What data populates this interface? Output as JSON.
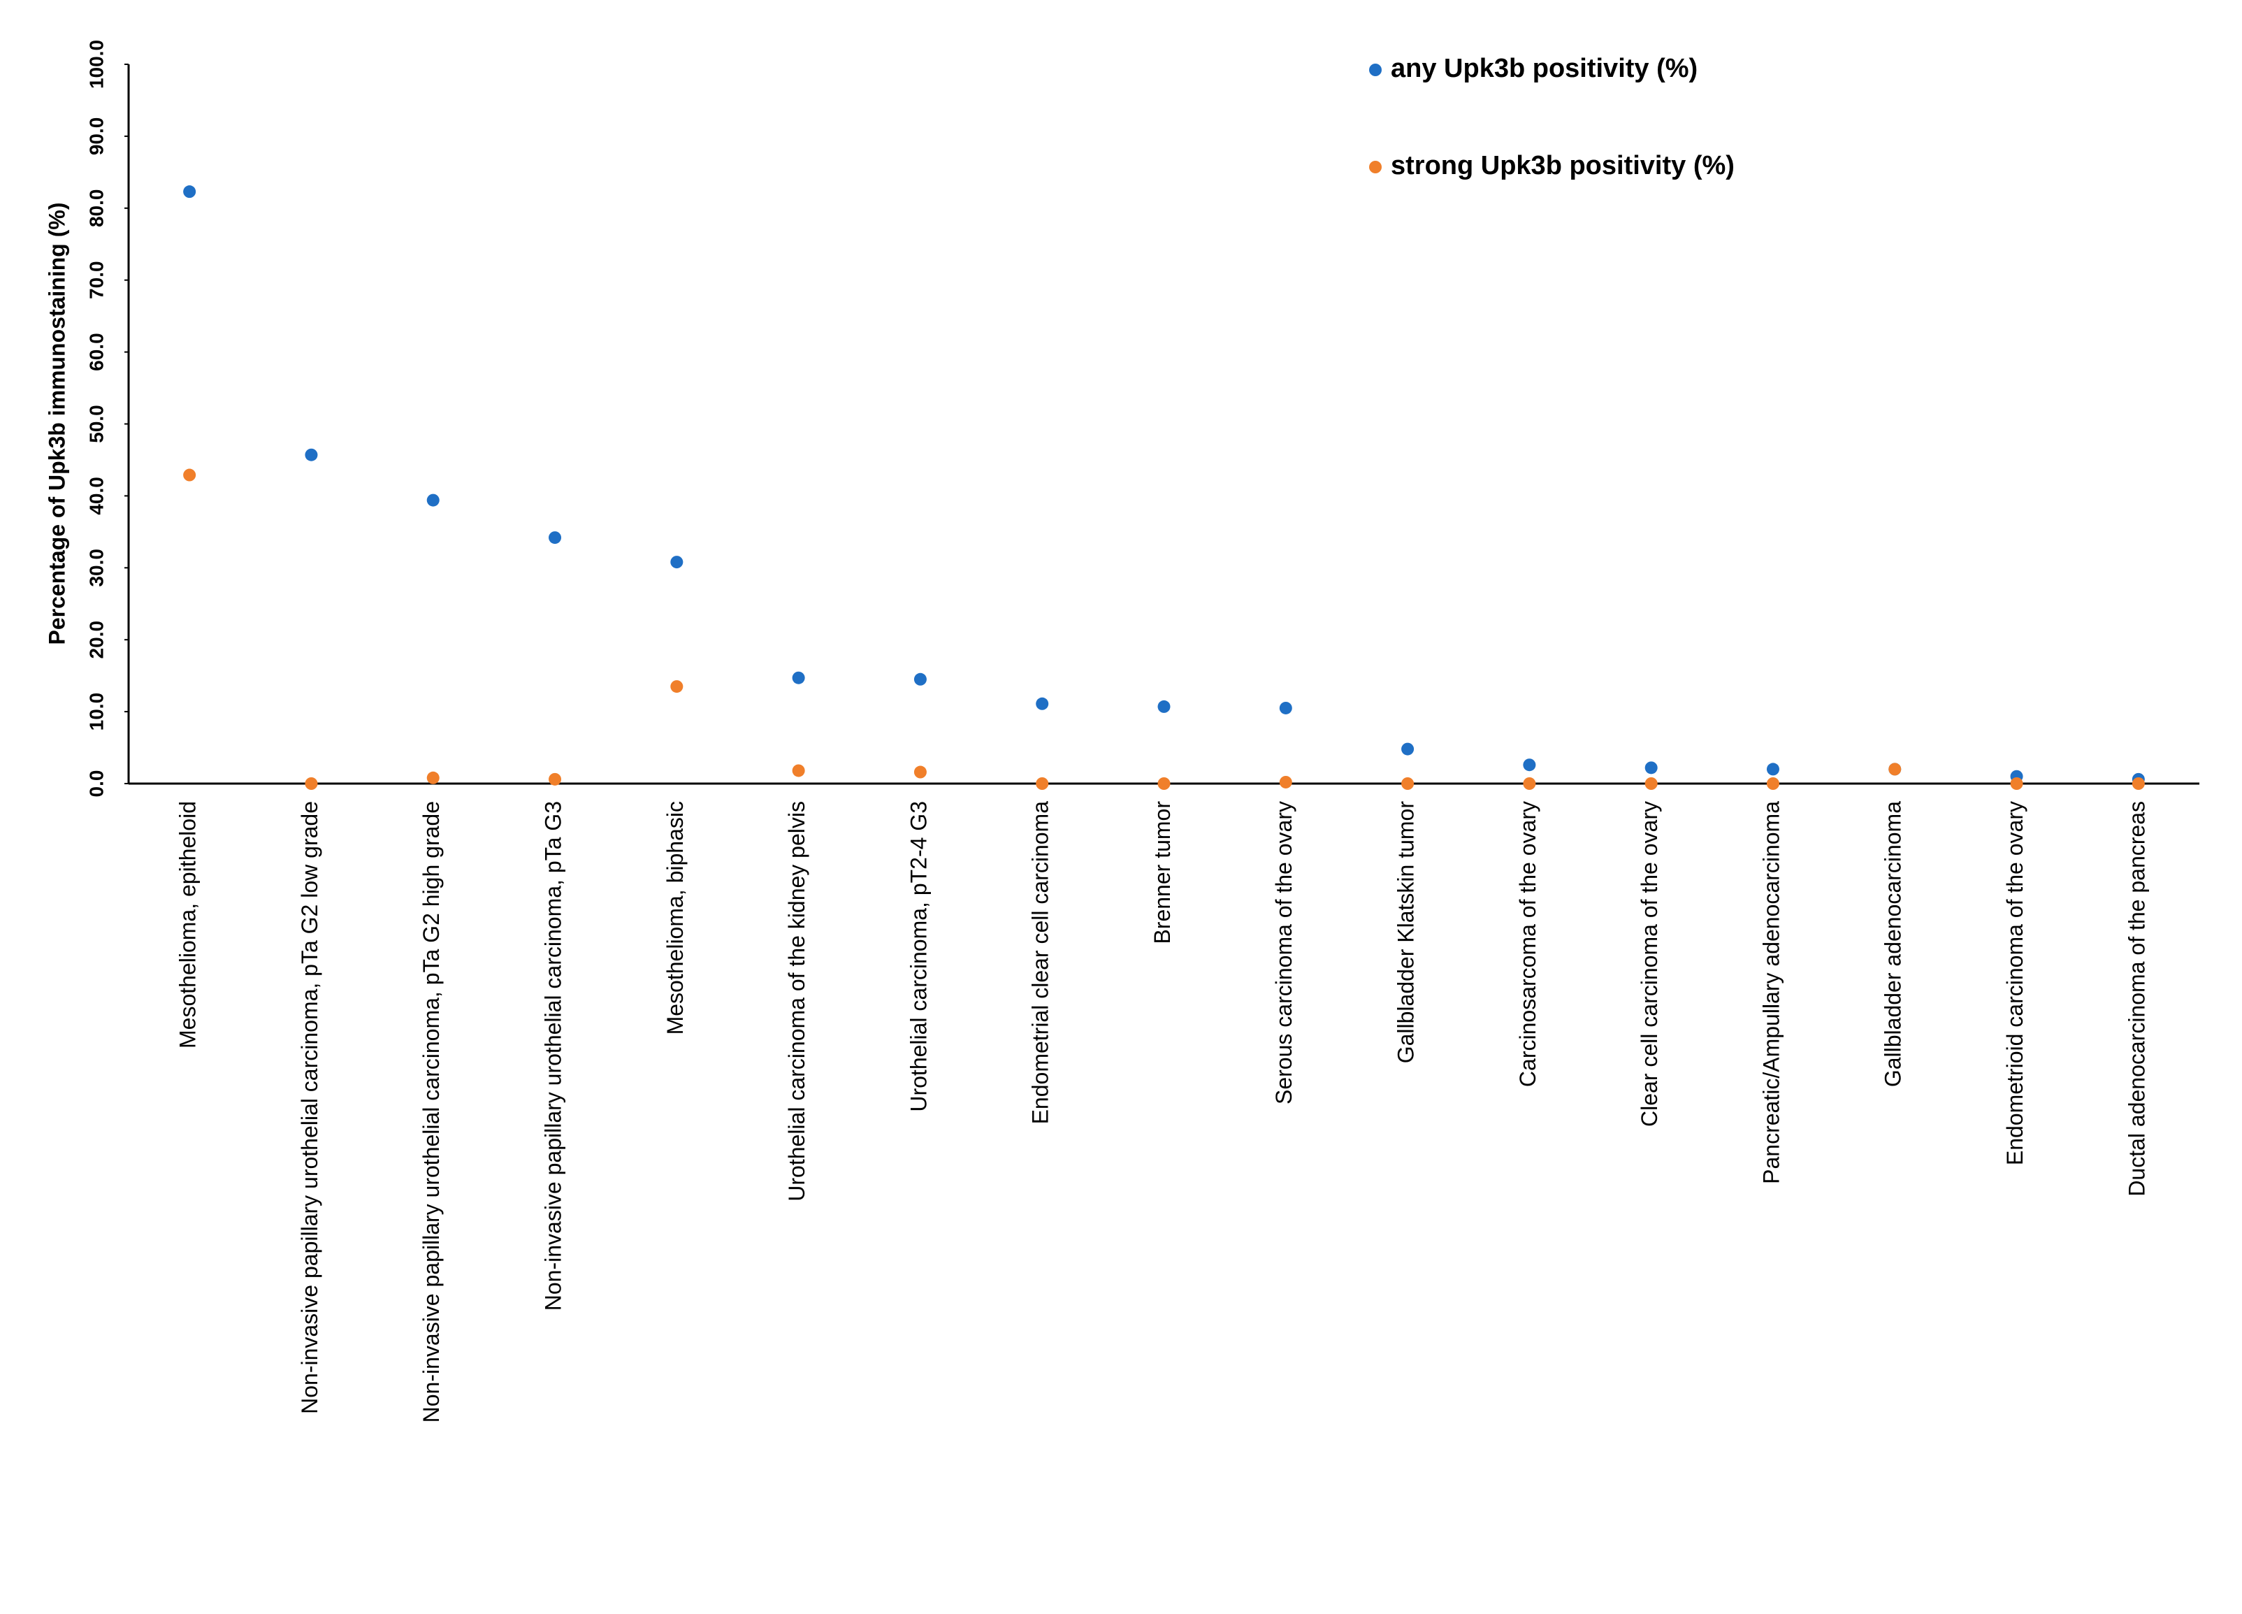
{
  "chart_data": {
    "type": "scatter",
    "y_label": "Percentage of Upk3b immunostaining (%)",
    "categories": [
      "Mesothelioma, epitheloid",
      "Non-invasive papillary urothelial carcinoma, pTa G2 low grade",
      "Non-invasive papillary urothelial carcinoma, pTa G2 high grade",
      "Non-invasive papillary urothelial carcinoma, pTa G3",
      "Mesothelioma, biphasic",
      "Urothelial carcinoma of the kidney pelvis",
      "Urothelial carcinoma, pT2-4 G3",
      "Endometrial clear cell carcinoma",
      "Brenner tumor",
      "Serous carcinoma of the ovary",
      "Gallbladder Klatskin tumor",
      "Carcinosarcoma of the ovary",
      "Clear cell carcinoma of the ovary",
      "Pancreatic/Ampullary adenocarcinoma",
      "Gallbladder adenocarcinoma",
      "Endometrioid carcinoma of the ovary",
      "Ductal adenocarcinoma of the pancreas"
    ],
    "series": [
      {
        "name": "any Upk3b positivity (%)",
        "color": "#1f6fc5",
        "values": [
          82.3,
          45.7,
          39.4,
          34.2,
          30.8,
          14.7,
          14.5,
          11.1,
          10.7,
          10.5,
          4.8,
          2.6,
          2.2,
          2.0,
          2.0,
          1.0,
          0.6
        ]
      },
      {
        "name": "strong Upk3b positivity (%)",
        "color": "#f07f2a",
        "values": [
          42.9,
          0,
          0.8,
          0.6,
          13.5,
          1.8,
          1.6,
          0,
          0,
          0.2,
          0,
          0,
          0,
          0,
          2.0,
          0,
          0
        ]
      }
    ],
    "ylim": [
      0,
      100
    ],
    "yticks": [
      {
        "value": 0,
        "label": "0.0"
      },
      {
        "value": 10,
        "label": "10.0"
      },
      {
        "value": 20,
        "label": "20.0"
      },
      {
        "value": 30,
        "label": "30.0"
      },
      {
        "value": 40,
        "label": "40.0"
      },
      {
        "value": 50,
        "label": "50.0"
      },
      {
        "value": 60,
        "label": "60.0"
      },
      {
        "value": 70,
        "label": "70.0"
      },
      {
        "value": 80,
        "label": "80.0"
      },
      {
        "value": 90,
        "label": "90.0"
      },
      {
        "value": 100,
        "label": "100.0"
      }
    ],
    "grid": false
  }
}
